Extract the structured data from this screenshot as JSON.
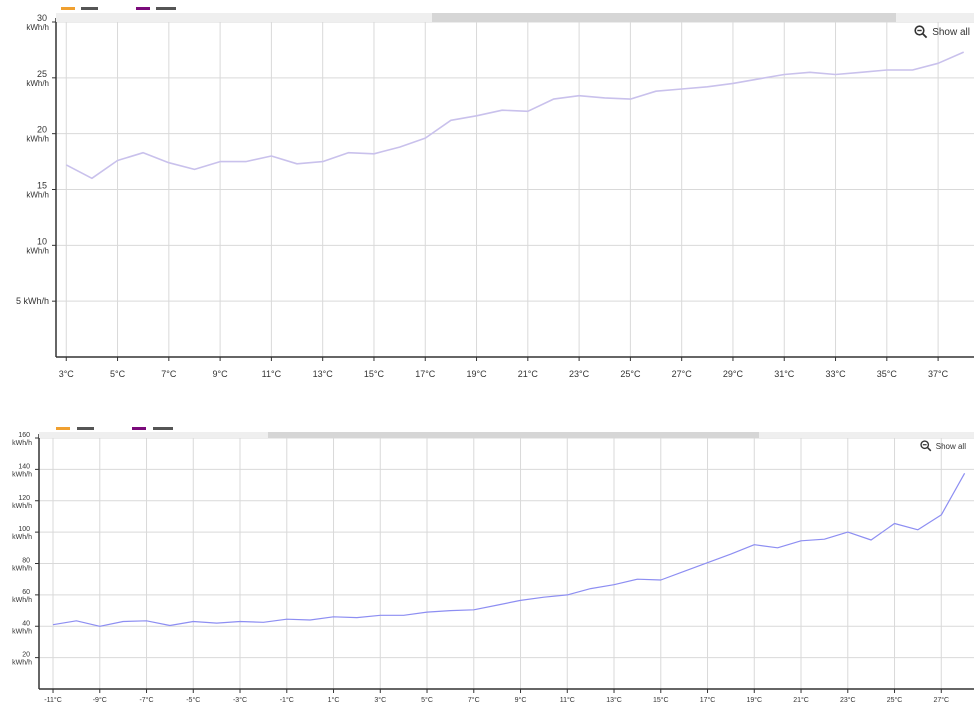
{
  "colors": {
    "legend_orange": "#f0a030",
    "legend_dark": "#555555",
    "legend_purple": "#7a0a7a",
    "line_top": "#c9c1ec",
    "line_bottom": "#8d8ef2",
    "grid": "#d9d9d9",
    "axis": "#333333"
  },
  "controls": {
    "show_all_label": "Show all",
    "zoom_icon": "zoom-out-icon"
  },
  "chart_data": [
    {
      "type": "line",
      "title": "",
      "xlabel": "",
      "ylabel": "",
      "x_unit": "°C",
      "x": [
        3,
        4,
        5,
        6,
        7,
        8,
        9,
        10,
        11,
        12,
        13,
        14,
        15,
        16,
        17,
        18,
        19,
        20,
        21,
        22,
        23,
        24,
        25,
        26,
        27,
        28,
        29,
        30,
        31,
        32,
        33,
        34,
        35,
        36,
        37,
        38
      ],
      "series": [
        {
          "values": [
            17.2,
            16.0,
            17.6,
            18.3,
            17.4,
            16.8,
            17.5,
            17.5,
            18.0,
            17.3,
            17.5,
            18.3,
            18.2,
            18.8,
            19.6,
            21.2,
            21.6,
            22.1,
            22.0,
            23.1,
            23.4,
            23.2,
            23.1,
            23.8,
            24.0,
            24.2,
            24.5,
            24.9,
            25.3,
            25.5,
            25.3,
            25.5,
            25.7,
            25.7,
            26.3,
            27.3
          ]
        }
      ],
      "xlim": [
        2.6,
        38.4
      ],
      "ylim": [
        0,
        30
      ],
      "x_ticks": [
        "3°C",
        "5°C",
        "7°C",
        "9°C",
        "11°C",
        "13°C",
        "15°C",
        "17°C",
        "19°C",
        "21°C",
        "23°C",
        "25°C",
        "27°C",
        "29°C",
        "31°C",
        "33°C",
        "35°C",
        "37°C"
      ],
      "x_tick_values": [
        3,
        5,
        7,
        9,
        11,
        13,
        15,
        17,
        19,
        21,
        23,
        25,
        27,
        29,
        31,
        33,
        35,
        37
      ],
      "y_ticks": [
        {
          "value": 30,
          "label": "30",
          "unit": "kWh/h"
        },
        {
          "value": 25,
          "label": "25",
          "unit": "kWh/h"
        },
        {
          "value": 20,
          "label": "20",
          "unit": "kWh/h"
        },
        {
          "value": 15,
          "label": "15",
          "unit": "kWh/h"
        },
        {
          "value": 10,
          "label": "10",
          "unit": "kWh/h"
        },
        {
          "value": 5,
          "label": "5 kWh/h",
          "unit": ""
        }
      ],
      "grid": true,
      "scrollbar": {
        "start": 0.41,
        "end": 0.915
      }
    },
    {
      "type": "line",
      "title": "",
      "xlabel": "",
      "ylabel": "",
      "x_unit": "°C",
      "x": [
        -11,
        -10,
        -9,
        -8,
        -7,
        -6,
        -5,
        -4,
        -3,
        -2,
        -1,
        0,
        1,
        2,
        3,
        4,
        5,
        6,
        7,
        8,
        9,
        10,
        11,
        12,
        13,
        14,
        15,
        16,
        17,
        18,
        19,
        20,
        21,
        22,
        23,
        24,
        25,
        26,
        27,
        28
      ],
      "series": [
        {
          "values": [
            41,
            43.5,
            40,
            43,
            43.5,
            40.5,
            43,
            42,
            43,
            42.5,
            44.5,
            44,
            46,
            45.5,
            47,
            47,
            49,
            50,
            50.5,
            53.5,
            56.5,
            58.5,
            60,
            64,
            66.5,
            70,
            69.5,
            75,
            80.5,
            86,
            92,
            90,
            94.5,
            95.5,
            100,
            95,
            105.5,
            101.5,
            111,
            137.5
          ]
        }
      ],
      "xlim": [
        -11.6,
        28.4
      ],
      "ylim": [
        0,
        160
      ],
      "x_ticks": [
        "-11°C",
        "-9°C",
        "-7°C",
        "-5°C",
        "-3°C",
        "-1°C",
        "1°C",
        "3°C",
        "5°C",
        "7°C",
        "9°C",
        "11°C",
        "13°C",
        "15°C",
        "17°C",
        "19°C",
        "21°C",
        "23°C",
        "25°C",
        "27°C"
      ],
      "x_tick_values": [
        -11,
        -9,
        -7,
        -5,
        -3,
        -1,
        1,
        3,
        5,
        7,
        9,
        11,
        13,
        15,
        17,
        19,
        21,
        23,
        25,
        27
      ],
      "y_ticks": [
        {
          "value": 160,
          "label": "160",
          "unit": "kWh/h"
        },
        {
          "value": 140,
          "label": "140",
          "unit": "kWh/h"
        },
        {
          "value": 120,
          "label": "120",
          "unit": "kWh/h"
        },
        {
          "value": 100,
          "label": "100",
          "unit": "kWh/h"
        },
        {
          "value": 80,
          "label": "80",
          "unit": "kWh/h"
        },
        {
          "value": 60,
          "label": "60",
          "unit": "kWh/h"
        },
        {
          "value": 40,
          "label": "40",
          "unit": "kWh/h"
        },
        {
          "value": 20,
          "label": "20",
          "unit": "kWh/h"
        }
      ],
      "grid": true,
      "scrollbar": {
        "start": 0.245,
        "end": 0.77
      }
    }
  ]
}
